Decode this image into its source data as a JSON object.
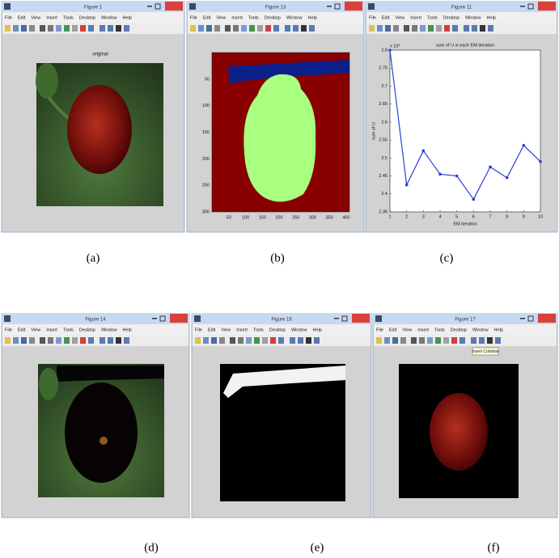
{
  "menu": [
    "File",
    "Edit",
    "View",
    "Insert",
    "Tools",
    "Desktop",
    "Window",
    "Help"
  ],
  "panels": [
    {
      "window_title": "Figure 1",
      "axes_title": "original",
      "caption": "(a)"
    },
    {
      "window_title": "Figure 13",
      "caption": "(b)",
      "xlim": [
        0,
        410
      ],
      "ylim": [
        0,
        300
      ],
      "xticks": [
        50,
        100,
        150,
        200,
        250,
        300,
        350,
        400
      ],
      "yticks": [
        50,
        100,
        150,
        200,
        250,
        300
      ]
    },
    {
      "window_title": "Figure 11",
      "caption": "(c)"
    },
    {
      "window_title": "Figure 14",
      "caption": "(d)"
    },
    {
      "window_title": "Figure 16",
      "caption": "(e)"
    },
    {
      "window_title": "Figure 17",
      "caption": "(f)",
      "tooltip": "Insert Colorbar"
    }
  ],
  "chart_data": {
    "type": "line",
    "title": "sum of U in each EM iteration",
    "x_label": "EM iteration",
    "y_label": "sum of U",
    "exponent": "x 10⁵",
    "x": [
      1,
      2,
      3,
      4,
      5,
      6,
      7,
      8,
      9,
      10
    ],
    "series": [
      {
        "color": "#2b3fd6",
        "values": [
          2.8,
          2.425,
          2.52,
          2.455,
          2.45,
          2.385,
          2.475,
          2.445,
          2.535,
          2.49
        ]
      }
    ],
    "xlim": [
      1,
      10
    ],
    "ylim": [
      2.35,
      2.8
    ],
    "xticks": [
      1,
      2,
      3,
      4,
      5,
      6,
      7,
      8,
      9,
      10
    ],
    "yticks": [
      2.35,
      2.4,
      2.45,
      2.5,
      2.55,
      2.6,
      2.65,
      2.7,
      2.75,
      2.8
    ]
  }
}
